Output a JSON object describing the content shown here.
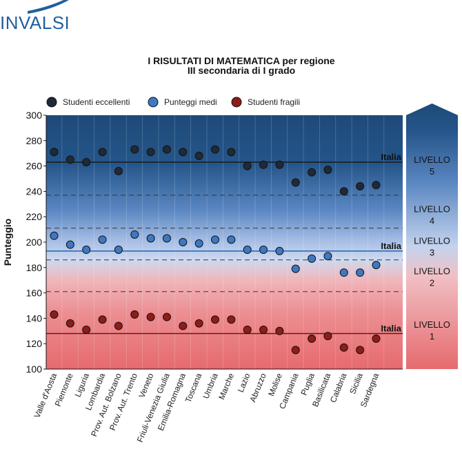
{
  "logo": {
    "text": "INVALSI"
  },
  "chart_data": {
    "type": "scatter",
    "title": "I RISULTATI DI MATEMATICA per regione",
    "subtitle": "III secondaria di I grado",
    "ylabel": "Punteggio",
    "xlabel": "",
    "ylim": [
      100,
      300
    ],
    "yticks": [
      100,
      120,
      140,
      160,
      180,
      200,
      220,
      240,
      260,
      280,
      300
    ],
    "grid": false,
    "legend_position": "top-left",
    "categories": [
      "Valle d'Aosta",
      "Piemonte",
      "Liguria",
      "Lombardia",
      "Prov. Aut. Bolzano",
      "Prov. Aut. Trento",
      "Veneto",
      "Friuli-Venezia Giulia",
      "Emilia-Romagna",
      "Toscana",
      "Umbria",
      "Marche",
      "Lazio",
      "Abruzzo",
      "Molise",
      "Campania",
      "Puglia",
      "Basilicata",
      "Calabria",
      "Sicilia",
      "Sardegna"
    ],
    "series": [
      {
        "name": "Studenti eccellenti",
        "color": "#1f2a36",
        "values": [
          271,
          265,
          263,
          271,
          256,
          273,
          271,
          273,
          271,
          268,
          273,
          271,
          260,
          261,
          261,
          247,
          255,
          257,
          240,
          244,
          245
        ]
      },
      {
        "name": "Punteggi medi",
        "color": "#3d78c3",
        "values": [
          205,
          198,
          194,
          202,
          194,
          206,
          203,
          203,
          200,
          199,
          202,
          202,
          194,
          194,
          193,
          179,
          187,
          189,
          176,
          176,
          182
        ]
      },
      {
        "name": "Studenti fragili",
        "color": "#8f1c16",
        "values": [
          143,
          136,
          131,
          139,
          134,
          143,
          141,
          141,
          134,
          136,
          139,
          139,
          131,
          131,
          130,
          115,
          124,
          126,
          117,
          115,
          124
        ]
      }
    ],
    "reference_lines": [
      {
        "label": "Italia",
        "value": 263
      },
      {
        "label": "Italia",
        "value": 193
      },
      {
        "label": "Italia",
        "value": 128
      }
    ],
    "level_boundaries": [
      237,
      211,
      186,
      161
    ],
    "levels": [
      {
        "line1": "LIVELLO",
        "line2": "5",
        "center": 261
      },
      {
        "line1": "LIVELLO",
        "line2": "4",
        "center": 222
      },
      {
        "line1": "LIVELLO",
        "line2": "3",
        "center": 197
      },
      {
        "line1": "LIVELLO",
        "line2": "2",
        "center": 173
      },
      {
        "line1": "LIVELLO",
        "line2": "1",
        "center": 131
      }
    ],
    "colors": {
      "top": "#1e4a78",
      "mid": "#cdd9ef",
      "bottom": "#e66a6e"
    }
  }
}
